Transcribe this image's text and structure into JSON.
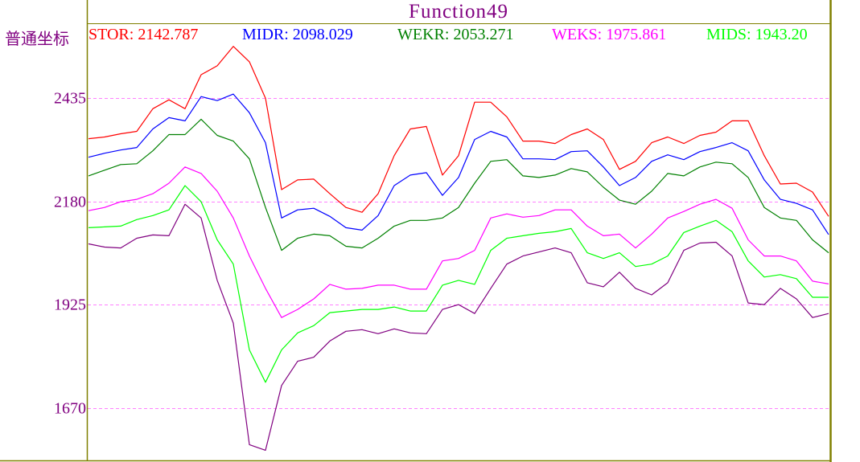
{
  "chart_data": {
    "type": "line",
    "title": "Function49",
    "coord_mode_label": "普通坐标",
    "ylim": [
      1540,
      2620
    ],
    "yticks": [
      2435,
      2180,
      1925,
      1670
    ],
    "grid": true,
    "legend_placement": "top",
    "colors": {
      "axis": "#808000",
      "grid": "#ff80ff",
      "text": "#800080"
    },
    "x": [
      1,
      2,
      3,
      4,
      5,
      6,
      7,
      8,
      9,
      10,
      11,
      12,
      13,
      14,
      15,
      16,
      17,
      18,
      19,
      20,
      21,
      22,
      23,
      24,
      25,
      26,
      27,
      28,
      29,
      30,
      31,
      32,
      33,
      34,
      35,
      36,
      37,
      38,
      39,
      40,
      41,
      42,
      43,
      44,
      45,
      46,
      47
    ],
    "series": [
      {
        "name": "STOR",
        "legend_value": "2142.787",
        "color": "#ff0000",
        "values": [
          2335,
          2339,
          2347,
          2353,
          2409,
          2431,
          2409,
          2493,
          2515,
          2563,
          2525,
          2435,
          2209,
          2233,
          2235,
          2199,
          2165,
          2153,
          2199,
          2293,
          2359,
          2365,
          2245,
          2293,
          2425,
          2425,
          2389,
          2329,
          2329,
          2323,
          2345,
          2359,
          2333,
          2259,
          2279,
          2325,
          2339,
          2323,
          2343,
          2351,
          2379,
          2379,
          2293,
          2223,
          2225,
          2203,
          2143
        ]
      },
      {
        "name": "MIDR",
        "legend_value": "2098.029",
        "color": "#0000ff",
        "values": [
          2289,
          2299,
          2307,
          2313,
          2359,
          2387,
          2379,
          2439,
          2429,
          2445,
          2399,
          2325,
          2139,
          2159,
          2163,
          2143,
          2115,
          2109,
          2145,
          2219,
          2245,
          2251,
          2195,
          2239,
          2333,
          2353,
          2339,
          2285,
          2285,
          2283,
          2303,
          2305,
          2265,
          2219,
          2239,
          2279,
          2295,
          2283,
          2303,
          2313,
          2325,
          2305,
          2233,
          2185,
          2175,
          2159,
          2098
        ]
      },
      {
        "name": "WEKR",
        "legend_value": "2053.271",
        "color": "#008000",
        "values": [
          2243,
          2257,
          2271,
          2273,
          2305,
          2345,
          2345,
          2383,
          2343,
          2329,
          2285,
          2165,
          2059,
          2089,
          2099,
          2095,
          2069,
          2065,
          2089,
          2119,
          2133,
          2133,
          2139,
          2165,
          2225,
          2279,
          2283,
          2243,
          2239,
          2245,
          2261,
          2253,
          2215,
          2183,
          2173,
          2205,
          2249,
          2243,
          2265,
          2277,
          2273,
          2239,
          2165,
          2139,
          2133,
          2085,
          2053
        ]
      },
      {
        "name": "WEKS",
        "legend_value": "1975.861",
        "color": "#ff00ff",
        "values": [
          2157,
          2165,
          2179,
          2185,
          2199,
          2225,
          2265,
          2249,
          2205,
          2139,
          2045,
          1965,
          1893,
          1913,
          1939,
          1975,
          1963,
          1965,
          1973,
          1973,
          1963,
          1963,
          2033,
          2039,
          2059,
          2139,
          2149,
          2141,
          2145,
          2159,
          2159,
          2119,
          2095,
          2099,
          2065,
          2099,
          2139,
          2155,
          2173,
          2185,
          2163,
          2085,
          2045,
          2045,
          2033,
          1983,
          1976
        ]
      },
      {
        "name": "MIDS",
        "legend_value": "1943.20",
        "color": "#00ff00",
        "values": [
          2115,
          2117,
          2119,
          2135,
          2145,
          2159,
          2219,
          2179,
          2085,
          2025,
          1813,
          1733,
          1813,
          1855,
          1873,
          1905,
          1909,
          1913,
          1913,
          1919,
          1909,
          1909,
          1973,
          1985,
          1975,
          2059,
          2089,
          2095,
          2101,
          2105,
          2113,
          2053,
          2039,
          2053,
          2019,
          2025,
          2045,
          2103,
          2119,
          2133,
          2105,
          2033,
          1993,
          1999,
          1989,
          1943,
          1943
        ]
      },
      {
        "color": "#800080",
        "values": [
          2075,
          2067,
          2065,
          2089,
          2097,
          2095,
          2173,
          2139,
          1985,
          1879,
          1579,
          1565,
          1725,
          1785,
          1795,
          1835,
          1859,
          1863,
          1853,
          1865,
          1855,
          1853,
          1913,
          1925,
          1903,
          1965,
          2025,
          2045,
          2055,
          2065,
          2053,
          1979,
          1969,
          2005,
          1965,
          1949,
          1979,
          2059,
          2077,
          2079,
          2045,
          1929,
          1925,
          1965,
          1939,
          1893,
          1903
        ]
      }
    ]
  }
}
